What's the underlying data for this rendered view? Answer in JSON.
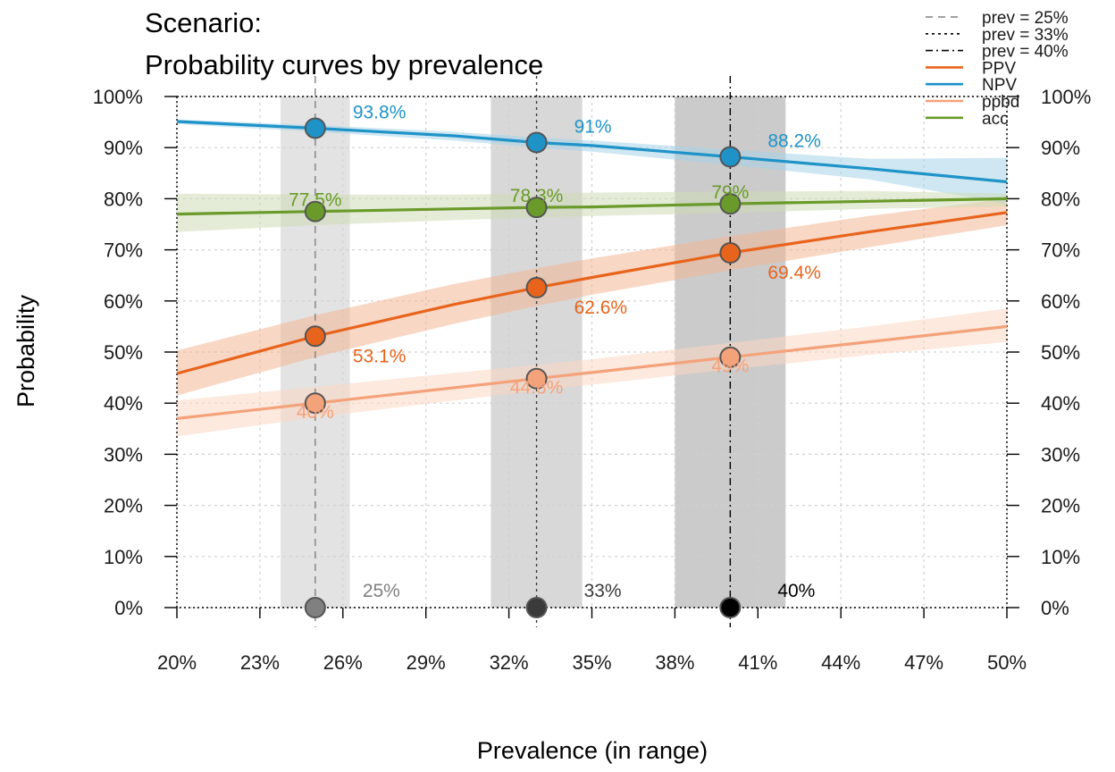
{
  "chart_data": {
    "type": "line",
    "title": "Scenario:",
    "subtitle": "Probability curves by prevalence",
    "xlabel": "Prevalence (in range)",
    "ylabel": "Probability",
    "xlim": [
      0.2,
      0.5
    ],
    "ylim": [
      0,
      1
    ],
    "x_ticks": [
      0.2,
      0.23,
      0.26,
      0.29,
      0.32,
      0.35,
      0.38,
      0.41,
      0.44,
      0.47,
      0.5
    ],
    "x_tick_labels": [
      "20%",
      "23%",
      "26%",
      "29%",
      "32%",
      "35%",
      "38%",
      "41%",
      "44%",
      "47%",
      "50%"
    ],
    "y_ticks": [
      0,
      0.1,
      0.2,
      0.3,
      0.4,
      0.5,
      0.6,
      0.7,
      0.8,
      0.9,
      1.0
    ],
    "y_tick_labels": [
      "0%",
      "10%",
      "20%",
      "30%",
      "40%",
      "50%",
      "60%",
      "70%",
      "80%",
      "90%",
      "100%"
    ],
    "grid": true,
    "legend_position": "top-right",
    "prevalence_markers": [
      {
        "name": "prev = 25%",
        "x": 0.25,
        "label": "25%",
        "band": [
          0.2375,
          0.2625
        ],
        "line_style": "dashed",
        "band_color": "#e3e3e3",
        "point_color": "#808080",
        "line_color": "#808080"
      },
      {
        "name": "prev = 33%",
        "x": 0.33,
        "label": "33%",
        "band": [
          0.3135,
          0.3465
        ],
        "line_style": "dotted",
        "band_color": "#d8d8d8",
        "point_color": "#3a3a3a",
        "line_color": "#3a3a3a"
      },
      {
        "name": "prev = 40%",
        "x": 0.4,
        "label": "40%",
        "band": [
          0.38,
          0.42
        ],
        "line_style": "dotdash",
        "band_color": "#cbcbcb",
        "point_color": "#000000",
        "line_color": "#000000"
      }
    ],
    "series": [
      {
        "name": "PPV",
        "color": "#e8641c",
        "band_color": "#f4b795",
        "x": [
          0.2,
          0.25,
          0.3,
          0.33,
          0.35,
          0.4,
          0.45,
          0.5
        ],
        "y": [
          0.458,
          0.531,
          0.593,
          0.626,
          0.646,
          0.694,
          0.735,
          0.773
        ],
        "lower": [
          0.415,
          0.49,
          0.555,
          0.59,
          0.612,
          0.66,
          0.705,
          0.748
        ],
        "upper": [
          0.503,
          0.572,
          0.633,
          0.664,
          0.683,
          0.727,
          0.766,
          0.8
        ],
        "points": [
          {
            "x": 0.25,
            "y": 0.531,
            "label": "53.1%"
          },
          {
            "x": 0.33,
            "y": 0.626,
            "label": "62.6%"
          },
          {
            "x": 0.4,
            "y": 0.694,
            "label": "69.4%"
          }
        ]
      },
      {
        "name": "NPV",
        "color": "#1f93c8",
        "band_color": "#a6d4ea",
        "x": [
          0.2,
          0.25,
          0.3,
          0.33,
          0.35,
          0.4,
          0.45,
          0.5
        ],
        "y": [
          0.951,
          0.938,
          0.923,
          0.91,
          0.904,
          0.882,
          0.859,
          0.833
        ],
        "lower": [
          0.946,
          0.931,
          0.914,
          0.9,
          0.892,
          0.866,
          0.838,
          0.79
        ],
        "upper": [
          0.955,
          0.944,
          0.931,
          0.92,
          0.914,
          0.896,
          0.878,
          0.88
        ],
        "points": [
          {
            "x": 0.25,
            "y": 0.938,
            "label": "93.8%"
          },
          {
            "x": 0.33,
            "y": 0.91,
            "label": "91%"
          },
          {
            "x": 0.4,
            "y": 0.882,
            "label": "88.2%"
          }
        ]
      },
      {
        "name": "ppbd",
        "color": "#f4a27a",
        "band_color": "#fbd7c3",
        "x": [
          0.2,
          0.25,
          0.3,
          0.33,
          0.35,
          0.4,
          0.45,
          0.5
        ],
        "y": [
          0.37,
          0.4,
          0.43,
          0.448,
          0.46,
          0.49,
          0.52,
          0.55
        ],
        "lower": [
          0.335,
          0.372,
          0.405,
          0.424,
          0.436,
          0.466,
          0.494,
          0.52
        ],
        "upper": [
          0.405,
          0.432,
          0.459,
          0.475,
          0.486,
          0.518,
          0.55,
          0.585
        ],
        "points": [
          {
            "x": 0.25,
            "y": 0.4,
            "label": "40%"
          },
          {
            "x": 0.33,
            "y": 0.448,
            "label": "44.8%"
          },
          {
            "x": 0.4,
            "y": 0.49,
            "label": "49%"
          }
        ]
      },
      {
        "name": "acc",
        "color": "#6a9a2a",
        "band_color": "#cedcb6",
        "x": [
          0.2,
          0.25,
          0.3,
          0.33,
          0.35,
          0.4,
          0.45,
          0.5
        ],
        "y": [
          0.77,
          0.775,
          0.78,
          0.783,
          0.784,
          0.79,
          0.795,
          0.8
        ],
        "lower": [
          0.735,
          0.748,
          0.758,
          0.763,
          0.766,
          0.772,
          0.78,
          0.785
        ],
        "upper": [
          0.81,
          0.808,
          0.808,
          0.81,
          0.812,
          0.814,
          0.815,
          0.81
        ],
        "points": [
          {
            "x": 0.25,
            "y": 0.775,
            "label": "77.5%"
          },
          {
            "x": 0.33,
            "y": 0.783,
            "label": "78.3%"
          },
          {
            "x": 0.4,
            "y": 0.79,
            "label": "79%"
          }
        ]
      }
    ]
  }
}
